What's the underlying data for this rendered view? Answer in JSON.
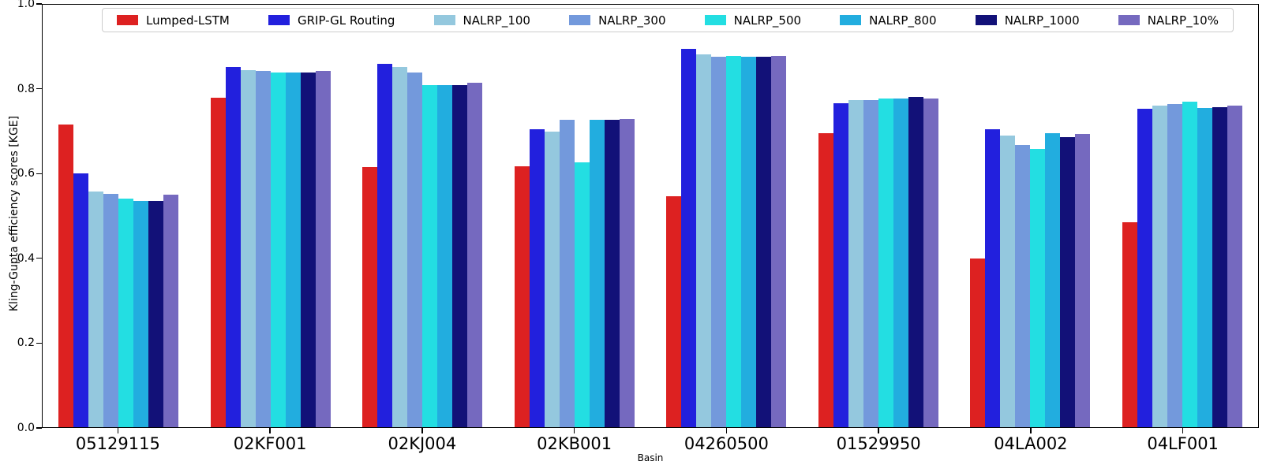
{
  "figure": {
    "ylabel": "Kling-Gupta efficiency scores [KGE]",
    "xlabel": "Basin"
  },
  "chart_data": {
    "type": "bar",
    "title": "",
    "xlabel": "Basin",
    "ylabel": "Kling-Gupta efficiency scores [KGE]",
    "ylim": [
      0.0,
      1.0
    ],
    "yticks": [
      0.0,
      0.2,
      0.4,
      0.6,
      0.8,
      1.0
    ],
    "grid": false,
    "legend_position": "top",
    "categories": [
      "05129115",
      "02KF001",
      "02KJ004",
      "02KB001",
      "04260500",
      "01529950",
      "04LA002",
      "04LF001"
    ],
    "series": [
      {
        "name": "Lumped-LSTM",
        "color": "#dd2121",
        "values": [
          0.717,
          0.779,
          0.616,
          0.617,
          0.547,
          0.696,
          0.4,
          0.486
        ]
      },
      {
        "name": "GRIP-GL Routing",
        "color": "#2220dd",
        "values": [
          0.601,
          0.852,
          0.861,
          0.706,
          0.896,
          0.766,
          0.705,
          0.753
        ]
      },
      {
        "name": "NALRP_100",
        "color": "#94c8de",
        "values": [
          0.558,
          0.845,
          0.853,
          0.7,
          0.882,
          0.774,
          0.691,
          0.762
        ]
      },
      {
        "name": "NALRP_300",
        "color": "#7399dc",
        "values": [
          0.552,
          0.843,
          0.84,
          0.728,
          0.876,
          0.774,
          0.668,
          0.765
        ]
      },
      {
        "name": "NALRP_500",
        "color": "#23dee2",
        "values": [
          0.541,
          0.839,
          0.81,
          0.626,
          0.878,
          0.778,
          0.659,
          0.77
        ]
      },
      {
        "name": "NALRP_800",
        "color": "#22addf",
        "values": [
          0.535,
          0.839,
          0.81,
          0.728,
          0.876,
          0.778,
          0.695,
          0.755
        ]
      },
      {
        "name": "NALRP_1000",
        "color": "#121178",
        "values": [
          0.535,
          0.84,
          0.809,
          0.728,
          0.876,
          0.782,
          0.687,
          0.757
        ]
      },
      {
        "name": "NALRP_10%",
        "color": "#7569bf",
        "values": [
          0.551,
          0.844,
          0.815,
          0.73,
          0.878,
          0.778,
          0.694,
          0.762
        ]
      }
    ]
  }
}
